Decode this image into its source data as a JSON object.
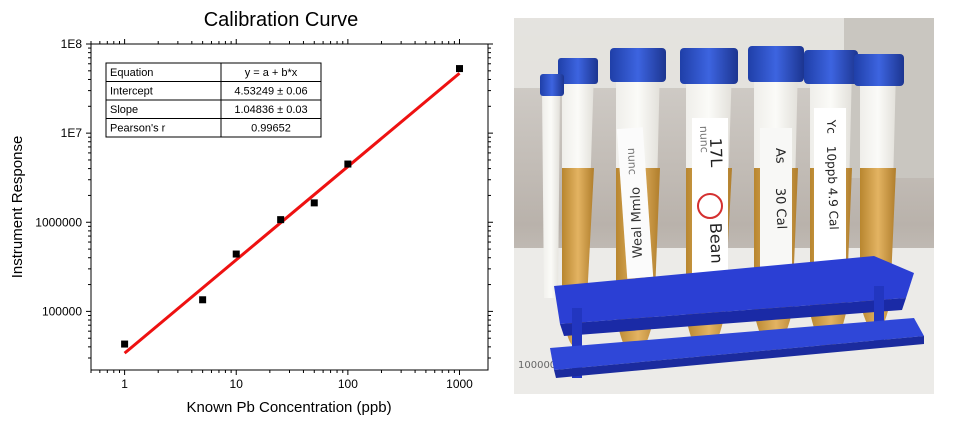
{
  "chart_data": {
    "type": "scatter",
    "title": "Calibration Curve",
    "xlabel": "Known Pb Concentration (ppb)",
    "ylabel": "Instrument Response",
    "xscale": "log",
    "yscale": "log",
    "xlim": [
      0.5,
      1800
    ],
    "ylim": [
      22000,
      100000000
    ],
    "x_ticks": [
      1,
      10,
      100,
      1000
    ],
    "x_tick_labels": [
      "1",
      "10",
      "100",
      "1000"
    ],
    "y_ticks": [
      100000,
      1000000,
      10000000,
      100000000
    ],
    "y_tick_labels": [
      "100000",
      "1000000",
      "1E7",
      "1E8"
    ],
    "grid": false,
    "series": [
      {
        "type": "scatter",
        "x": [
          1,
          5,
          10,
          25,
          50,
          100,
          1000
        ],
        "y": [
          43000,
          135000,
          440000,
          1070000,
          1650000,
          4500000,
          53000000
        ]
      },
      {
        "type": "line",
        "x": [
          1,
          1000
        ],
        "y": [
          34000,
          47000000
        ]
      }
    ],
    "colors": {
      "points": "#000000",
      "fit": "#ee1111"
    },
    "fit_table": {
      "placement": "top-left",
      "rows": [
        {
          "label": "Equation",
          "value": "y = a + b*x"
        },
        {
          "label": "Intercept",
          "value": "4.53249 ± 0.06"
        },
        {
          "label": "Slope",
          "value": "1.04836 ± 0.03"
        },
        {
          "label": "Pearson's r",
          "value": "0.99652"
        }
      ]
    }
  },
  "photo": {
    "tube_labels": [
      "Weal Mmlo",
      "17L",
      "Bean",
      "As",
      "30 Cal",
      "Yc",
      "10ppb 4.9 Cal",
      "nunc",
      "nunc"
    ],
    "paper_text": "100000"
  }
}
